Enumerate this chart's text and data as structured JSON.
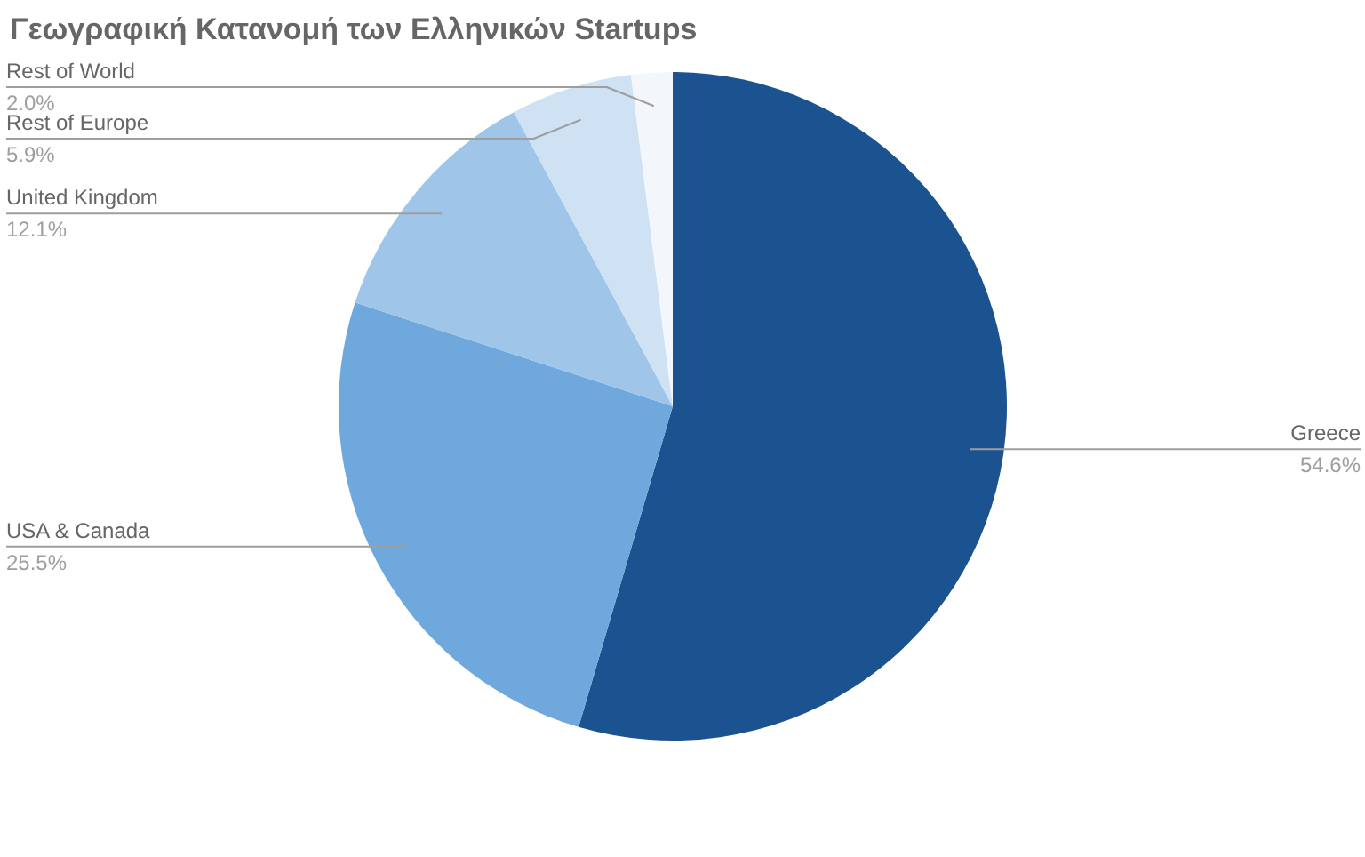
{
  "chart_data": {
    "type": "pie",
    "title": "Γεωγραφική Κατανομή των Ελληνικών Startups",
    "categories": [
      "Greece",
      "USA & Canada",
      "United Kingdom",
      "Rest of Europe",
      "Rest of World"
    ],
    "values": [
      54.6,
      25.5,
      12.1,
      5.9,
      2.0
    ],
    "colors": [
      "#1b5290",
      "#6fa8dc",
      "#9fc5e8",
      "#cfe2f3",
      "#f3f7fb"
    ],
    "value_labels": [
      "54.6%",
      "25.5%",
      "12.1%",
      "5.9%",
      "2.0%"
    ]
  }
}
